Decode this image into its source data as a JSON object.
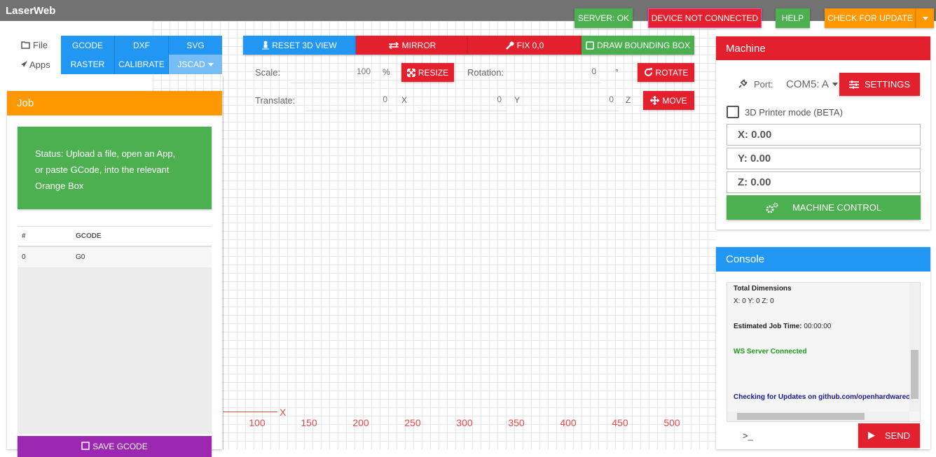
{
  "header": {
    "title": "LaserWeb",
    "server": "SERVER: OK",
    "device": "DEVICE NOT CONNECTED",
    "help": "HELP",
    "update": "CHECK FOR UPDATE"
  },
  "sidebar": {
    "file_label": "File",
    "apps_label": "Apps",
    "file_buttons": [
      "GCODE",
      "DXF",
      "SVG"
    ],
    "app_buttons": [
      "RASTER",
      "CALIBRATE",
      "JSCAD"
    ]
  },
  "job": {
    "title": "Job",
    "status": "Status: Upload a file, open an App, or paste GCode, into the relevant Orange Box",
    "table": {
      "header": [
        "#",
        "GCODE"
      ],
      "rows": [
        [
          "0",
          "G0"
        ]
      ]
    },
    "save_button": "SAVE GCODE"
  },
  "toolbar": {
    "buttons": [
      "RESET 3D VIEW",
      "MIRROR",
      "FIX 0,0",
      "DRAW BOUNDING BOX"
    ],
    "scale_label": "Scale:",
    "scale_value": 100,
    "scale_unit": "%",
    "resize": "RESIZE",
    "rotation_label": "Rotation:",
    "rotation_value": 0,
    "rotation_unit": "°",
    "rotate": "ROTATE",
    "translate_label": "Translate:",
    "translate": [
      {
        "value": 0,
        "axis": "X"
      },
      {
        "value": 0,
        "axis": "Y"
      },
      {
        "value": 0,
        "axis": "Z"
      }
    ],
    "move": "MOVE"
  },
  "viewport": {
    "axis_label": "X",
    "ticks": [
      100,
      150,
      200,
      250,
      300,
      350,
      400,
      450,
      500
    ]
  },
  "machine": {
    "title": "Machine",
    "port_label": "Port:",
    "port_value": "COM5: A",
    "settings": "SETTINGS",
    "printer_mode": "3D Printer mode (BETA)",
    "positions": [
      "X: 0.00",
      "Y: 0.00",
      "Z: 0.00"
    ],
    "control": "MACHINE CONTROL"
  },
  "console": {
    "title": "Console",
    "lines": {
      "dimensions_title": "Total Dimensions",
      "dimensions": "X: 0 Y: 0 Z: 0",
      "job_time_label": "Estimated Job Time:",
      "job_time": "00:00:00",
      "server": "WS Server Connected",
      "updates": "Checking for Updates on github.com/openhardwarecoz"
    },
    "prompt": ">_",
    "send": "SEND"
  }
}
